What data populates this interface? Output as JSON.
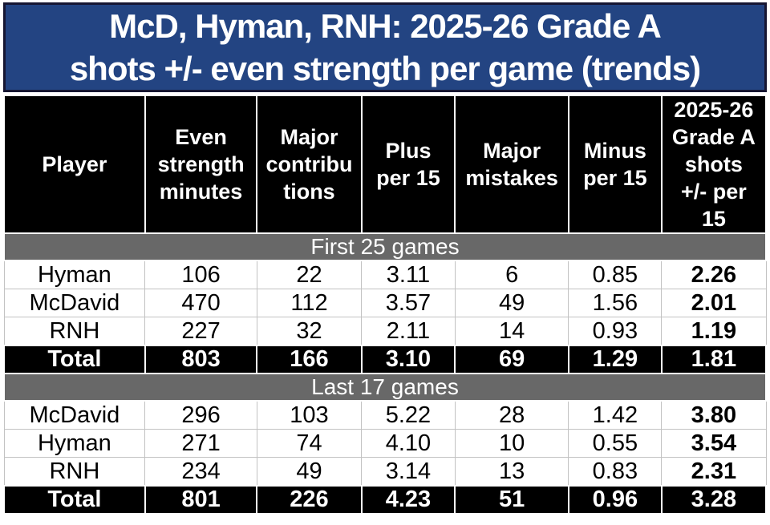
{
  "title": {
    "line1": "McD, Hyman, RNH: 2025-26 Grade A",
    "line2": "shots +/- even strength per game (trends)"
  },
  "table": {
    "columns": [
      "Player",
      "Even\nstrength\nminutes",
      "Major\ncontribu\ntions",
      "Plus\nper 15",
      "Major\nmistakes",
      "Minus\nper 15",
      "2025-26\nGrade A\nshots\n+/- per\n15"
    ],
    "sections": [
      {
        "label": "First 25 games",
        "rows": [
          {
            "player": "Hyman",
            "values": [
              "106",
              "22",
              "3.11",
              "6",
              "0.85",
              "2.26"
            ],
            "is_total": false
          },
          {
            "player": "McDavid",
            "values": [
              "470",
              "112",
              "3.57",
              "49",
              "1.56",
              "2.01"
            ],
            "is_total": false
          },
          {
            "player": "RNH",
            "values": [
              "227",
              "32",
              "2.11",
              "14",
              "0.93",
              "1.19"
            ],
            "is_total": false
          },
          {
            "player": "Total",
            "values": [
              "803",
              "166",
              "3.10",
              "69",
              "1.29",
              "1.81"
            ],
            "is_total": true
          }
        ]
      },
      {
        "label": "Last 17 games",
        "rows": [
          {
            "player": "McDavid",
            "values": [
              "296",
              "103",
              "5.22",
              "28",
              "1.42",
              "3.80"
            ],
            "is_total": false
          },
          {
            "player": "Hyman",
            "values": [
              "271",
              "74",
              "4.10",
              "10",
              "0.55",
              "3.54"
            ],
            "is_total": false
          },
          {
            "player": "RNH",
            "values": [
              "234",
              "49",
              "3.14",
              "13",
              "0.83",
              "2.31"
            ],
            "is_total": false
          },
          {
            "player": "Total",
            "values": [
              "801",
              "226",
              "4.23",
              "51",
              "0.96",
              "3.28"
            ],
            "is_total": true
          }
        ]
      }
    ]
  },
  "colors": {
    "banner_bg": "#234482",
    "banner_border": "#161632",
    "banner_text": "#FFFFFF",
    "header_bg": "#000000",
    "header_text": "#FFFFFF",
    "section_bg": "#686868",
    "section_text": "#FFFFFF",
    "total_bg": "#000000",
    "total_text": "#FFFFFF",
    "row_bg": "#FFFFFF",
    "row_text": "#000000",
    "row_border": "#C2C2C2"
  },
  "chart_data": {
    "type": "table",
    "title": "McD, Hyman, RNH: 2025-26 Grade A shots +/- even strength per game (trends)",
    "columns": [
      "Player",
      "Even strength minutes",
      "Major contributions",
      "Plus per 15",
      "Major mistakes",
      "Minus per 15",
      "2025-26 Grade A shots +/- per 15"
    ],
    "sections": [
      {
        "label": "First 25 games",
        "rows": [
          [
            "Hyman",
            106,
            22,
            3.11,
            6,
            0.85,
            2.26
          ],
          [
            "McDavid",
            470,
            112,
            3.57,
            49,
            1.56,
            2.01
          ],
          [
            "RNH",
            227,
            32,
            2.11,
            14,
            0.93,
            1.19
          ],
          [
            "Total",
            803,
            166,
            3.1,
            69,
            1.29,
            1.81
          ]
        ]
      },
      {
        "label": "Last 17 games",
        "rows": [
          [
            "McDavid",
            296,
            103,
            5.22,
            28,
            1.42,
            3.8
          ],
          [
            "Hyman",
            271,
            74,
            4.1,
            10,
            0.55,
            3.54
          ],
          [
            "RNH",
            234,
            49,
            3.14,
            13,
            0.83,
            2.31
          ],
          [
            "Total",
            801,
            226,
            4.23,
            51,
            0.96,
            3.28
          ]
        ]
      }
    ]
  }
}
